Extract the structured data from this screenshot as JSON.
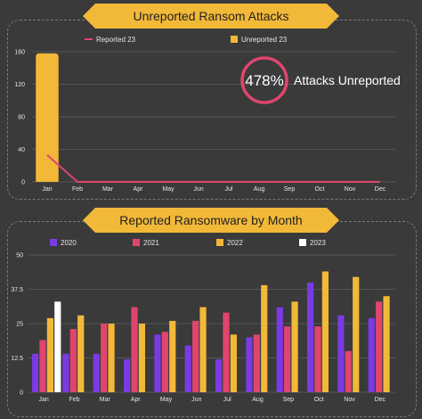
{
  "colors": {
    "background": "#3a3a3a",
    "banner": "#f2b838",
    "reported23": "#e0456e",
    "unreported23": "#f2b838",
    "y2020": "#7a3be3",
    "y2021": "#e0456e",
    "y2022": "#f2b838",
    "y2023": "#ffffff",
    "gridline": "#555555",
    "text": "#e6e6e6"
  },
  "kpi": {
    "value": "478%",
    "label": "Attacks Unreported"
  },
  "chart_data": [
    {
      "type": "bar",
      "title": "Unreported Ransom Attacks",
      "categories": [
        "Jan",
        "Feb",
        "Mar",
        "Apr",
        "May",
        "Jun",
        "Jul",
        "Aug",
        "Sep",
        "Oct",
        "Nov",
        "Dec"
      ],
      "ylim": [
        0,
        160
      ],
      "yticks": [
        "0",
        "40",
        "80",
        "120",
        "160"
      ],
      "grid": true,
      "legend_position": "top",
      "series": [
        {
          "name": "Reported 23",
          "kind": "line",
          "values": [
            33,
            0,
            0,
            0,
            0,
            0,
            0,
            0,
            0,
            0,
            0,
            0
          ]
        },
        {
          "name": "Unreported 23",
          "kind": "bar",
          "values": [
            158,
            0,
            0,
            0,
            0,
            0,
            0,
            0,
            0,
            0,
            0,
            0
          ]
        }
      ]
    },
    {
      "type": "bar",
      "title": "Reported Ransomware by Month",
      "categories": [
        "Jan",
        "Feb",
        "Mar",
        "Apr",
        "May",
        "Jun",
        "Jul",
        "Aug",
        "Sep",
        "Oct",
        "Nov",
        "Dec"
      ],
      "ylim": [
        0,
        50
      ],
      "yticks": [
        "0",
        "12.5",
        "25",
        "37.5",
        "50"
      ],
      "grid": true,
      "legend_position": "top",
      "series": [
        {
          "name": "2020",
          "values": [
            14,
            14,
            14,
            12,
            21,
            17,
            12,
            20,
            31,
            40,
            28,
            27
          ]
        },
        {
          "name": "2021",
          "values": [
            19,
            23,
            25,
            31,
            22,
            26,
            29,
            21,
            24,
            24,
            15,
            33
          ]
        },
        {
          "name": "2022",
          "values": [
            27,
            28,
            25,
            25,
            26,
            31,
            21,
            39,
            33,
            44,
            42,
            35
          ]
        },
        {
          "name": "2023",
          "values": [
            33,
            null,
            null,
            null,
            null,
            null,
            null,
            null,
            null,
            null,
            null,
            null
          ]
        }
      ]
    }
  ]
}
